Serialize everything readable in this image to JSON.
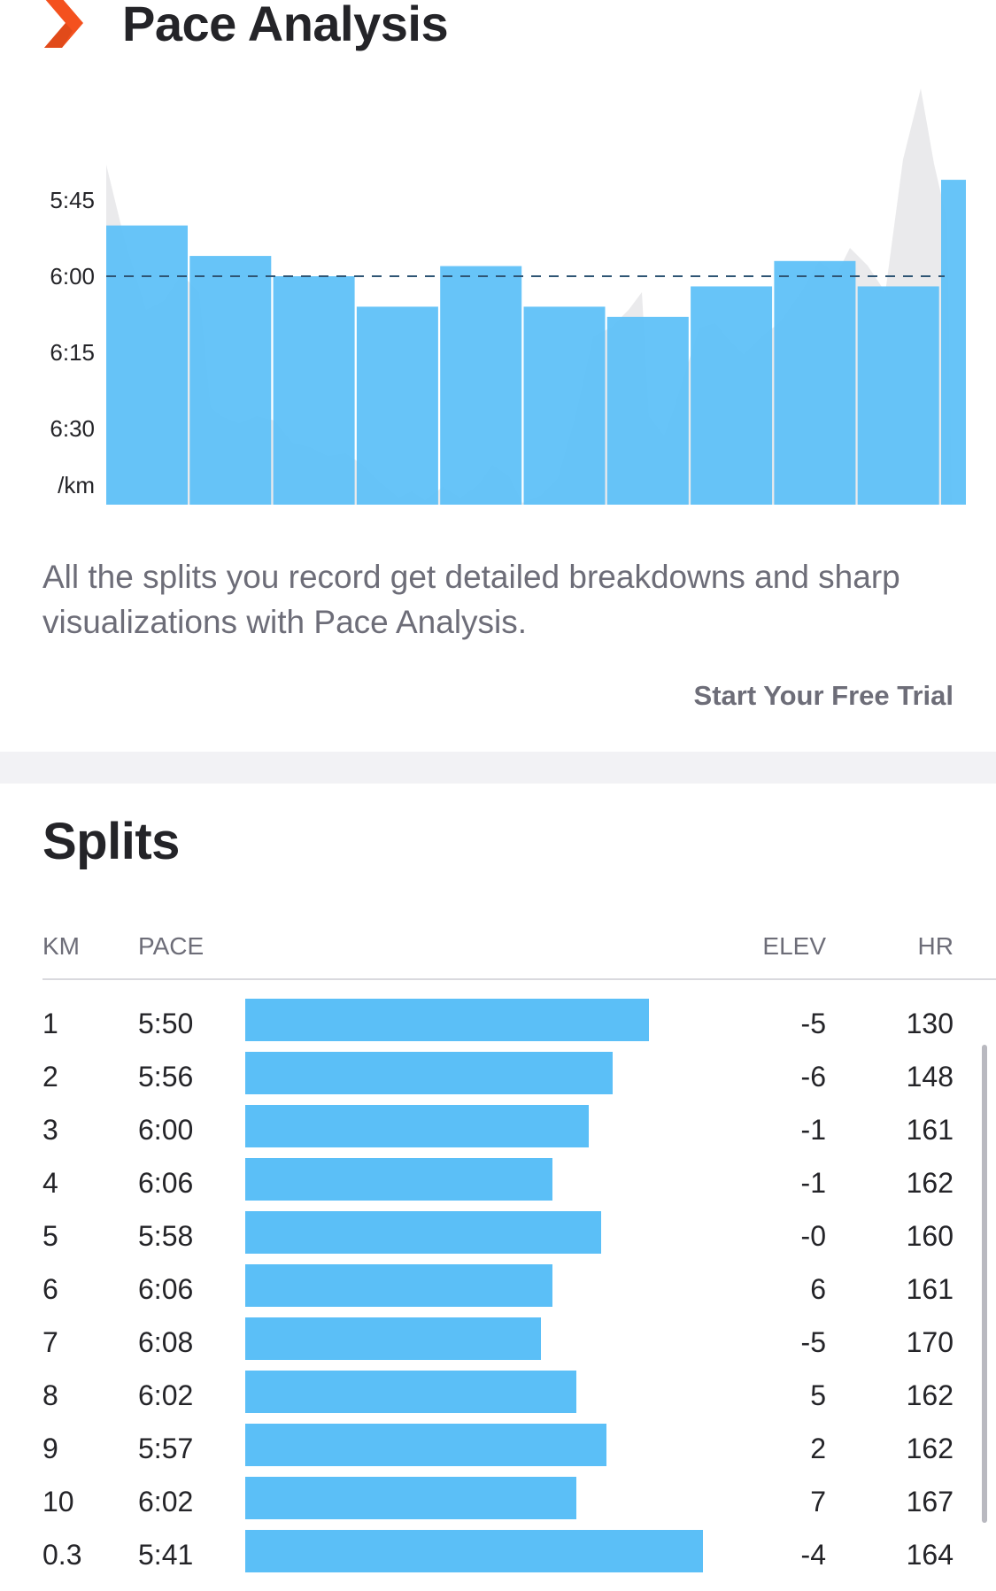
{
  "pace_analysis": {
    "title": "Pace Analysis",
    "icon": "chevron-right-icon",
    "accent_color": "#f4511e",
    "description": "All the splits you record get detailed breakdowns and sharp visualizations with Pace Analysis.",
    "cta_label": "Start Your Free Trial"
  },
  "chart_data": {
    "type": "bar",
    "title": "",
    "xlabel": "",
    "ylabel": "/km",
    "y_tick_labels": [
      "5:45",
      "6:00",
      "6:15",
      "6:30"
    ],
    "y_ticks_seconds": [
      345,
      360,
      375,
      390
    ],
    "reference_line_seconds": 360,
    "ylim_seconds": [
      330,
      405
    ],
    "categories": [
      "1",
      "2",
      "3",
      "4",
      "5",
      "6",
      "7",
      "8",
      "9",
      "10",
      "0.3"
    ],
    "values_seconds": [
      350,
      356,
      360,
      366,
      358,
      366,
      368,
      362,
      357,
      362,
      341
    ],
    "bar_color": "#5bbff7",
    "grid": false
  },
  "splits": {
    "title": "Splits",
    "columns": {
      "km": "KM",
      "pace": "PACE",
      "elev": "ELEV",
      "hr": "HR"
    },
    "bar_color": "#5bbff7",
    "rows": [
      {
        "km": "1",
        "pace": "5:50",
        "pace_seconds": 350,
        "elev": "-5",
        "hr": "130"
      },
      {
        "km": "2",
        "pace": "5:56",
        "pace_seconds": 356,
        "elev": "-6",
        "hr": "148"
      },
      {
        "km": "3",
        "pace": "6:00",
        "pace_seconds": 360,
        "elev": "-1",
        "hr": "161"
      },
      {
        "km": "4",
        "pace": "6:06",
        "pace_seconds": 366,
        "elev": "-1",
        "hr": "162"
      },
      {
        "km": "5",
        "pace": "5:58",
        "pace_seconds": 358,
        "elev": "-0",
        "hr": "160"
      },
      {
        "km": "6",
        "pace": "6:06",
        "pace_seconds": 366,
        "elev": "6",
        "hr": "161"
      },
      {
        "km": "7",
        "pace": "6:08",
        "pace_seconds": 368,
        "elev": "-5",
        "hr": "170"
      },
      {
        "km": "8",
        "pace": "6:02",
        "pace_seconds": 362,
        "elev": "5",
        "hr": "162"
      },
      {
        "km": "9",
        "pace": "5:57",
        "pace_seconds": 357,
        "elev": "2",
        "hr": "162"
      },
      {
        "km": "10",
        "pace": "6:02",
        "pace_seconds": 362,
        "elev": "7",
        "hr": "167"
      },
      {
        "km": "0.3",
        "pace": "5:41",
        "pace_seconds": 341,
        "elev": "-4",
        "hr": "164"
      }
    ]
  }
}
